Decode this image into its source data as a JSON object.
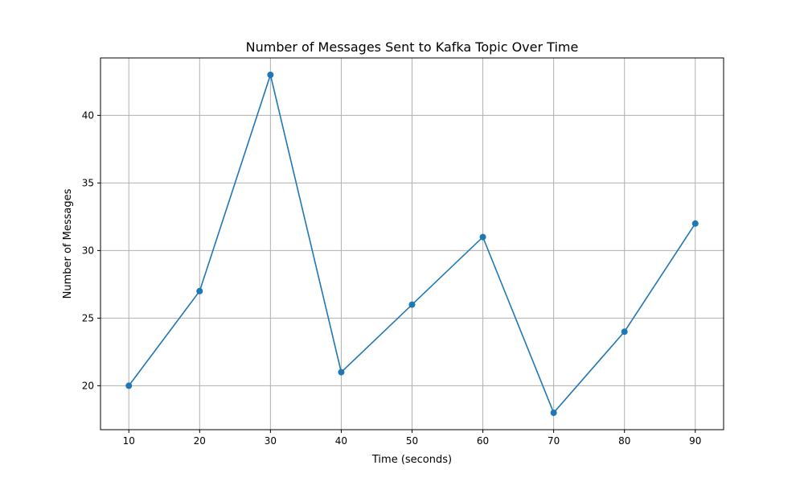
{
  "chart_data": {
    "type": "line",
    "title": "Number of Messages Sent to Kafka Topic Over Time",
    "xlabel": "Time (seconds)",
    "ylabel": "Number of Messages",
    "x": [
      10,
      20,
      30,
      40,
      50,
      60,
      70,
      80,
      90
    ],
    "series": [
      {
        "values": [
          20,
          27,
          43,
          21,
          26,
          31,
          18,
          24,
          32
        ],
        "marker": "circle"
      }
    ],
    "xticks": [
      10,
      20,
      30,
      40,
      50,
      60,
      70,
      80,
      90
    ],
    "yticks": [
      20,
      25,
      30,
      35,
      40
    ],
    "xlim": [
      6,
      94
    ],
    "ylim": [
      16.75,
      44.25
    ],
    "grid": true,
    "colors": {
      "line": "#1f77b4",
      "grid": "#b0b0b0",
      "axis": "#000000"
    }
  }
}
